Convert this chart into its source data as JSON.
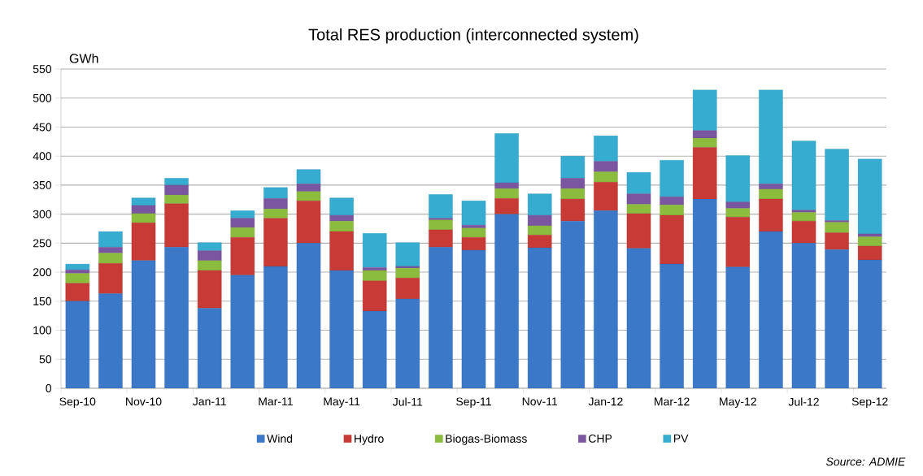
{
  "chart_data": {
    "type": "bar",
    "title": "Total RES production (interconnected system)",
    "ylabel": "GWh",
    "stacked": true,
    "grid": "y",
    "legend": "bottom",
    "categories": [
      "Sep-10",
      null,
      "Nov-10",
      null,
      "Jan-11",
      null,
      "Mar-11",
      null,
      "May-11",
      null,
      "Jul-11",
      null,
      "Sep-11",
      null,
      "Nov-11",
      null,
      "Jan-12",
      null,
      "Mar-12",
      null,
      "May-12",
      null,
      "Jul-12",
      null,
      "Sep-12"
    ],
    "ylim": [
      0,
      550
    ],
    "yticks": [
      0,
      50,
      100,
      150,
      200,
      250,
      300,
      350,
      400,
      450,
      500,
      550
    ],
    "series": [
      {
        "name": "Wind",
        "color": "#3b78c8",
        "values": [
          150,
          163,
          220,
          243,
          138,
          195,
          210,
          250,
          203,
          133,
          154,
          243,
          238,
          300,
          242,
          288,
          306,
          241,
          214,
          326,
          209,
          270,
          250,
          239,
          221
        ]
      },
      {
        "name": "Hydro",
        "color": "#c83a36",
        "values": [
          31,
          52,
          65,
          75,
          65,
          65,
          83,
          73,
          67,
          52,
          36,
          30,
          22,
          27,
          22,
          38,
          49,
          60,
          84,
          89,
          86,
          56,
          38,
          29,
          24
        ]
      },
      {
        "name": "Biogas-Biomass",
        "color": "#8cbc3e",
        "values": [
          17,
          18,
          16,
          15,
          17,
          17,
          16,
          16,
          18,
          18,
          17,
          17,
          16,
          17,
          16,
          18,
          18,
          16,
          18,
          16,
          15,
          17,
          15,
          18,
          16
        ]
      },
      {
        "name": "CHP",
        "color": "#7a55a0",
        "values": [
          6,
          10,
          14,
          17,
          17,
          16,
          18,
          13,
          10,
          5,
          3,
          3,
          5,
          10,
          18,
          18,
          18,
          18,
          14,
          13,
          11,
          9,
          4,
          3,
          5
        ]
      },
      {
        "name": "PV",
        "color": "#35acd0",
        "values": [
          10,
          27,
          13,
          12,
          14,
          13,
          19,
          25,
          30,
          59,
          41,
          41,
          42,
          85,
          37,
          38,
          44,
          37,
          63,
          70,
          80,
          162,
          119,
          123,
          129
        ]
      }
    ],
    "annotations": [
      "Source: ADMIE"
    ]
  }
}
